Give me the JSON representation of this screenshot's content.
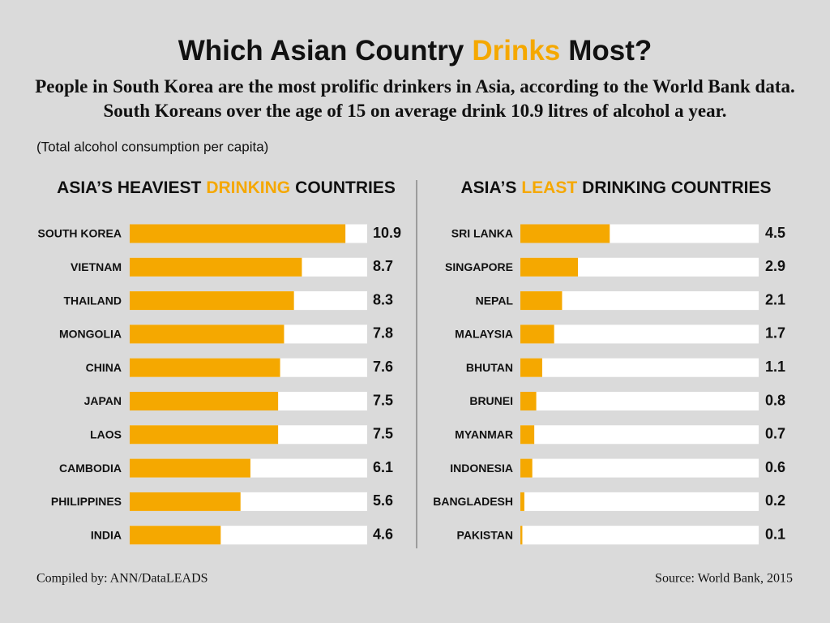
{
  "header": {
    "title": {
      "before": "Which Asian Country",
      "highlight": "Drinks",
      "after": "Most?"
    },
    "subtitle": "People in South Korea are the most prolific drinkers in Asia, according to the World Bank data. South Koreans over the age of 15 on average drink 10.9 litres of alcohol a year.",
    "note": "(Total alcohol consumption per capita)"
  },
  "chart_data": [
    {
      "type": "bar",
      "orientation": "horizontal",
      "title": {
        "before": "ASIA’S HEAVIEST",
        "highlight": "DRINKING",
        "after": "COUNTRIES"
      },
      "categories": [
        "SOUTH KOREA",
        "VIETNAM",
        "THAILAND",
        "MONGOLIA",
        "CHINA",
        "JAPAN",
        "LAOS",
        "CAMBODIA",
        "PHILIPPINES",
        "INDIA"
      ],
      "values": [
        10.9,
        8.7,
        8.3,
        7.8,
        7.6,
        7.5,
        7.5,
        6.1,
        5.6,
        4.6
      ],
      "color": "#f5a800",
      "xlim": [
        0,
        12
      ]
    },
    {
      "type": "bar",
      "orientation": "horizontal",
      "title": {
        "before": "ASIA’S",
        "highlight": "LEAST",
        "after": "DRINKING COUNTRIES"
      },
      "categories": [
        "SRI LANKA",
        "SINGAPORE",
        "NEPAL",
        "MALAYSIA",
        "BHUTAN",
        "BRUNEI",
        "MYANMAR",
        "INDONESIA",
        "BANGLADESH",
        "PAKISTAN"
      ],
      "values": [
        4.5,
        2.9,
        2.1,
        1.7,
        1.1,
        0.8,
        0.7,
        0.6,
        0.2,
        0.1
      ],
      "color": "#f5a800",
      "xlim": [
        0,
        12
      ]
    }
  ],
  "footer": {
    "left": "Compiled by: ANN/DataLEADS",
    "right": "Source: World Bank, 2015"
  }
}
